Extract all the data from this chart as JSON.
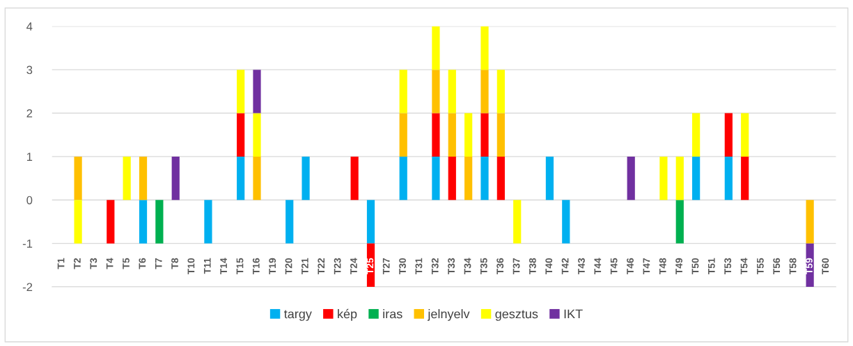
{
  "chart_data": {
    "type": "bar",
    "stacked": true,
    "grid": "y",
    "legend": "bottom",
    "categories": [
      "T1",
      "T2",
      "T3",
      "T4",
      "T5",
      "T6",
      "T7",
      "T8",
      "T10",
      "T11",
      "T14",
      "T15",
      "T16",
      "T19",
      "T20",
      "T21",
      "T22",
      "T23",
      "T24",
      "T25",
      "T27",
      "T30",
      "T31",
      "T32",
      "T33",
      "T34",
      "T35",
      "T36",
      "T37",
      "T38",
      "T40",
      "T42",
      "T43",
      "T44",
      "T45",
      "T46",
      "T47",
      "T48",
      "T49",
      "T50",
      "T51",
      "T53",
      "T54",
      "T55",
      "T56",
      "T58",
      "T59",
      "T60"
    ],
    "ylim": [
      -2,
      4
    ],
    "yticks": [
      -2,
      -1,
      0,
      1,
      2,
      3,
      4
    ],
    "series": [
      {
        "name": "targy",
        "color": "#00b0f0",
        "values": [
          0,
          0,
          0,
          0,
          0,
          -1,
          0,
          0,
          0,
          -1,
          0,
          1,
          0,
          0,
          -1,
          1,
          0,
          0,
          0,
          -1,
          0,
          1,
          0,
          1,
          0,
          0,
          1,
          0,
          0,
          0,
          1,
          -1,
          0,
          0,
          0,
          0,
          0,
          0,
          0,
          1,
          0,
          1,
          0,
          0,
          0,
          0,
          0,
          0
        ]
      },
      {
        "name": "kép",
        "color": "#ff0000",
        "values": [
          0,
          0,
          0,
          -1,
          0,
          0,
          0,
          0,
          0,
          0,
          0,
          1,
          0,
          0,
          0,
          0,
          0,
          0,
          1,
          -1,
          0,
          0,
          0,
          1,
          1,
          0,
          1,
          1,
          0,
          0,
          0,
          0,
          0,
          0,
          0,
          0,
          0,
          0,
          0,
          0,
          0,
          1,
          1,
          0,
          0,
          0,
          0,
          0
        ]
      },
      {
        "name": "iras",
        "color": "#00b050",
        "values": [
          0,
          0,
          0,
          0,
          0,
          0,
          -1,
          0,
          0,
          0,
          0,
          0,
          0,
          0,
          0,
          0,
          0,
          0,
          0,
          0,
          0,
          0,
          0,
          0,
          0,
          0,
          0,
          0,
          0,
          0,
          0,
          0,
          0,
          0,
          0,
          0,
          0,
          0,
          -1,
          0,
          0,
          0,
          0,
          0,
          0,
          0,
          0,
          0
        ]
      },
      {
        "name": "jelnyelv",
        "color": "#ffc000",
        "values": [
          0,
          1,
          0,
          0,
          0,
          1,
          0,
          0,
          0,
          0,
          0,
          0,
          1,
          0,
          0,
          0,
          0,
          0,
          0,
          0,
          0,
          1,
          0,
          1,
          1,
          1,
          1,
          1,
          0,
          0,
          0,
          0,
          0,
          0,
          0,
          0,
          0,
          0,
          0,
          0,
          0,
          0,
          0,
          0,
          0,
          0,
          -1,
          0
        ]
      },
      {
        "name": "gesztus",
        "color": "#ffff00",
        "values": [
          0,
          -1,
          0,
          0,
          1,
          0,
          0,
          0,
          0,
          0,
          0,
          1,
          1,
          0,
          0,
          0,
          0,
          0,
          0,
          0,
          0,
          1,
          0,
          1,
          1,
          1,
          1,
          1,
          -1,
          0,
          0,
          0,
          0,
          0,
          0,
          0,
          0,
          1,
          1,
          1,
          0,
          0,
          1,
          0,
          0,
          0,
          0,
          0
        ]
      },
      {
        "name": "IKT",
        "color": "#7030a0",
        "values": [
          0,
          0,
          0,
          0,
          0,
          0,
          0,
          1,
          0,
          0,
          0,
          0,
          1,
          0,
          0,
          0,
          0,
          0,
          0,
          0,
          0,
          0,
          0,
          0,
          0,
          0,
          0,
          0,
          0,
          0,
          0,
          0,
          0,
          0,
          0,
          1,
          0,
          0,
          0,
          0,
          0,
          0,
          0,
          0,
          0,
          0,
          -1,
          0
        ]
      }
    ]
  }
}
